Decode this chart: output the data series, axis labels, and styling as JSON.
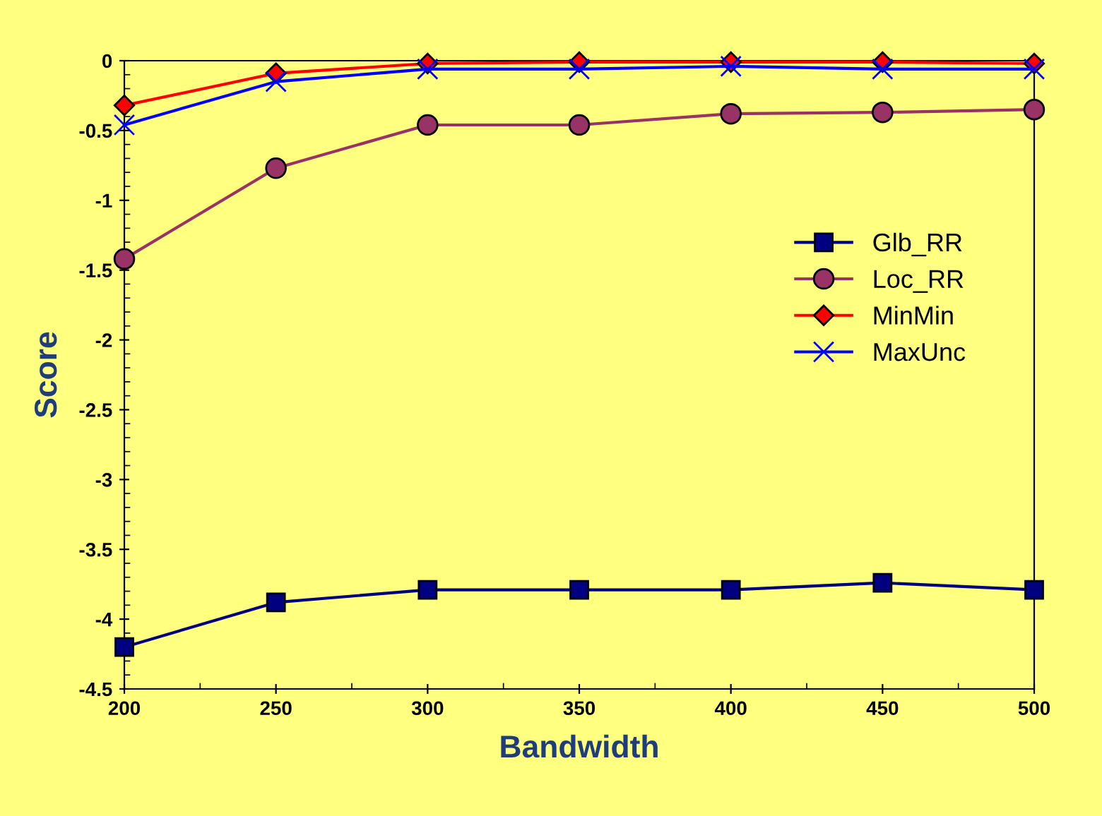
{
  "chart_data": {
    "type": "line",
    "xlabel": "Bandwidth",
    "ylabel": "Score",
    "x": [
      200,
      250,
      300,
      350,
      400,
      450,
      500
    ],
    "series": [
      {
        "name": "Glb_RR",
        "color": "#000080",
        "marker": "square",
        "values": [
          -4.2,
          -3.88,
          -3.79,
          -3.79,
          -3.79,
          -3.74,
          -3.79
        ]
      },
      {
        "name": "Loc_RR",
        "color": "#993366",
        "marker": "circle",
        "values": [
          -1.42,
          -0.77,
          -0.46,
          -0.46,
          -0.38,
          -0.37,
          -0.35
        ]
      },
      {
        "name": "MinMin",
        "color": "#ff0000",
        "marker": "diamond",
        "values": [
          -0.32,
          -0.09,
          -0.02,
          -0.01,
          -0.01,
          -0.01,
          -0.02
        ]
      },
      {
        "name": "MaxUnc",
        "color": "#0000ff",
        "marker": "cross",
        "values": [
          -0.46,
          -0.15,
          -0.06,
          -0.06,
          -0.04,
          -0.06,
          -0.06
        ]
      }
    ],
    "xlim": [
      200,
      500
    ],
    "xticks": [
      200,
      250,
      300,
      350,
      400,
      450,
      500
    ],
    "ylim": [
      -4.5,
      0
    ],
    "yticks": [
      -4.5,
      -4,
      -3.5,
      -3,
      -2.5,
      -2,
      -1.5,
      -1,
      -0.5,
      0
    ],
    "grid": false,
    "legend": "right"
  }
}
